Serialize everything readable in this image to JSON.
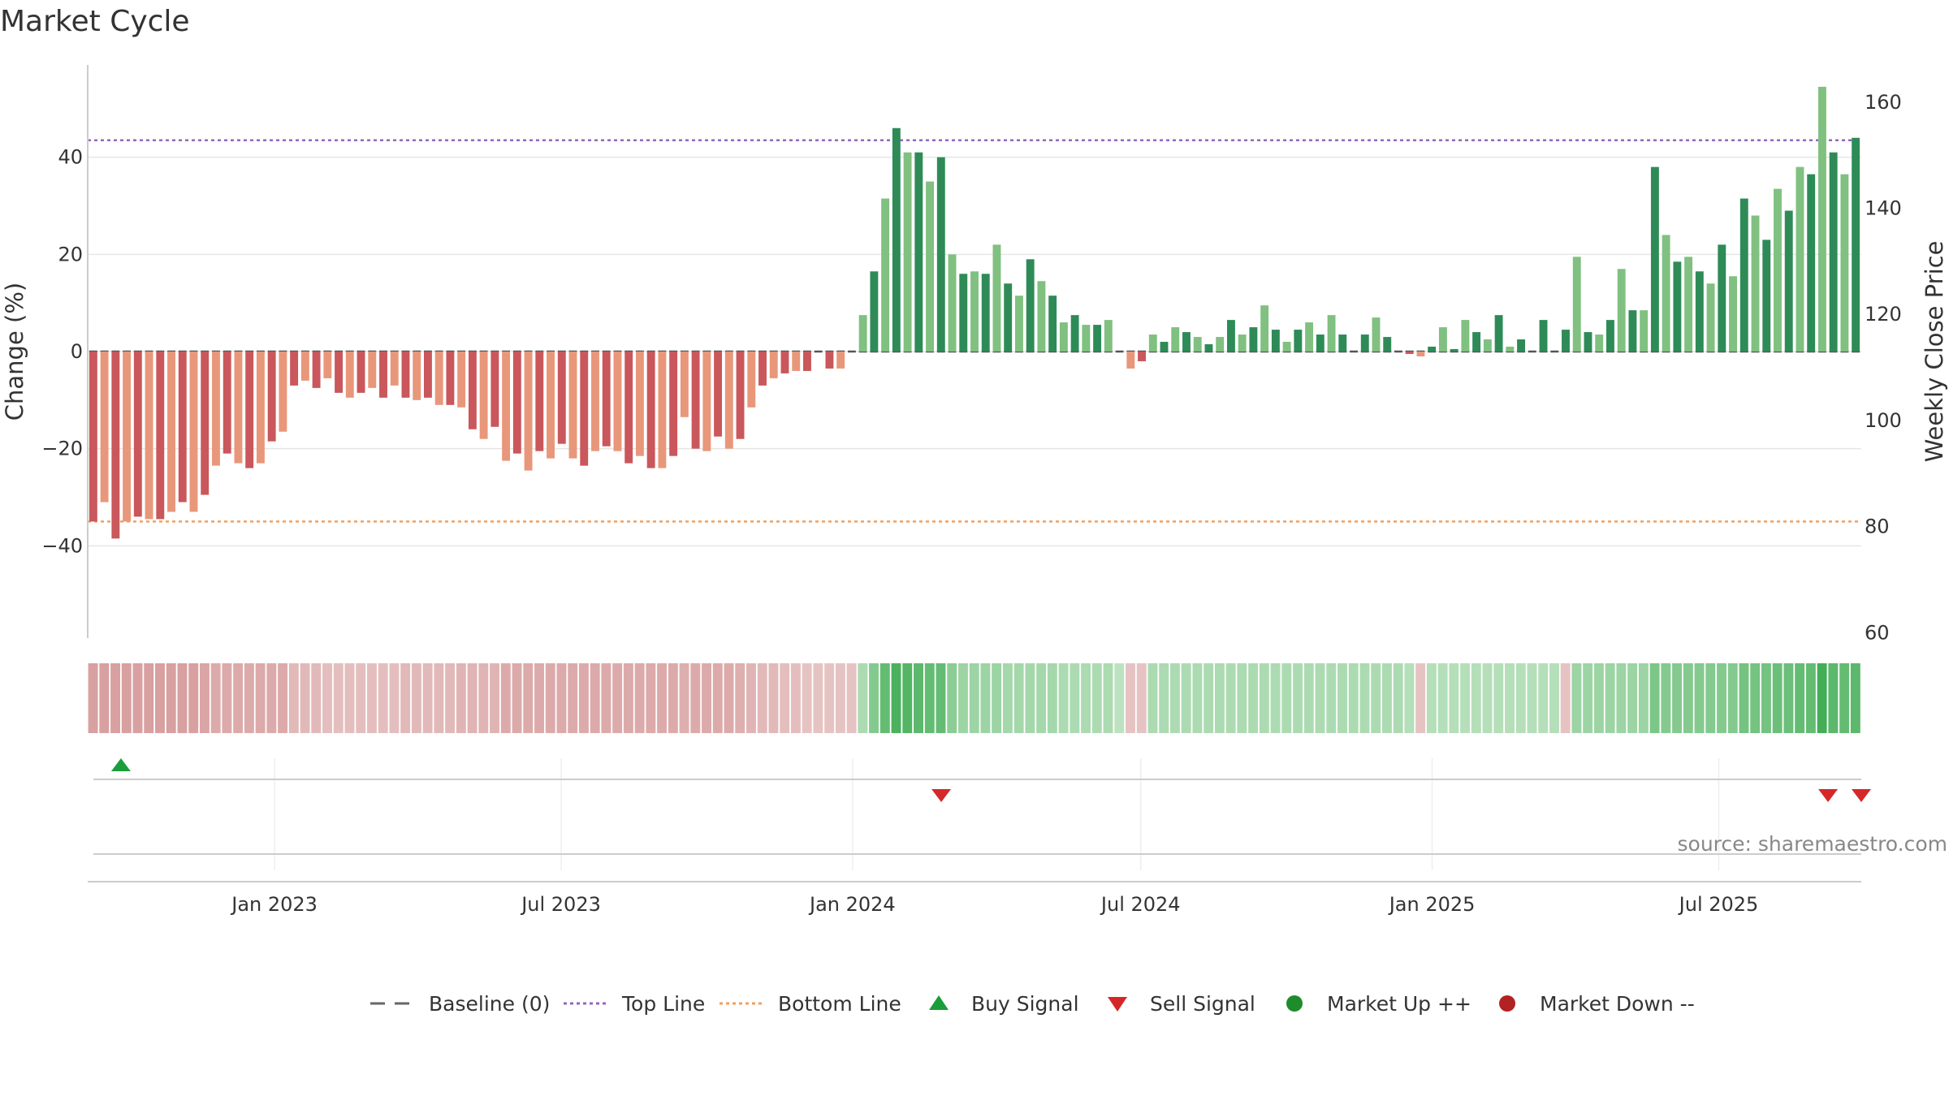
{
  "chart_data": {
    "type": "bar",
    "title": "Market Cycle",
    "ylabel_left": "Change (%)",
    "ylabel_right": "Weekly Close Price",
    "source": "source: sharemaestro.com",
    "left_axis": {
      "range": [
        -59.0,
        59.0
      ],
      "ticks": [
        40,
        20,
        0,
        -20,
        -40
      ],
      "tick_labels": [
        "40",
        "20",
        "0",
        "−20",
        "−40"
      ]
    },
    "right_axis": {
      "range": [
        59.0,
        167.0
      ],
      "ticks": [
        160,
        140,
        120,
        100,
        80,
        60
      ],
      "tick_labels": [
        "160",
        "140",
        "120",
        "100",
        "80",
        "60"
      ]
    },
    "x_axis": {
      "start_date": "2022-09-05",
      "end_date": "2025-09-29",
      "ticks": [
        "2023-01-01",
        "2023-07-01",
        "2024-01-01",
        "2024-07-01",
        "2025-01-01",
        "2025-07-01"
      ],
      "tick_labels": [
        "Jan 2023",
        "Jul 2023",
        "Jan 2024",
        "Jul 2024",
        "Jan 2025",
        "Jul 2025"
      ]
    },
    "reference_lines": {
      "baseline": 0,
      "top_line": 43.5,
      "bottom_line": -35
    },
    "grid": true,
    "legend_position": "bottom",
    "legend": [
      {
        "label": "Baseline (0)",
        "marker": "dash",
        "color": "#666666"
      },
      {
        "label": "Top Line",
        "marker": "dotted-line",
        "color": "#9467bd"
      },
      {
        "label": "Bottom Line",
        "marker": "dotted-line",
        "color": "#f0a060"
      },
      {
        "label": "Buy Signal",
        "marker": "triangle-up",
        "color": "#1a9e3c"
      },
      {
        "label": "Sell Signal",
        "marker": "triangle-down",
        "color": "#d62728"
      },
      {
        "label": "Market Up ++",
        "marker": "circle",
        "color": "#1e8c2a"
      },
      {
        "label": "Market Down --",
        "marker": "circle",
        "color": "#b22222"
      }
    ],
    "colors": {
      "neg_dark": "#c9575b",
      "neg_light": "#e8977b",
      "pos_dark": "#2e8b57",
      "pos_light": "#80c080",
      "top_line": "#9467bd",
      "bottom_line": "#f0a060",
      "buy": "#1a9e3c",
      "sell": "#d62728"
    },
    "series": [
      {
        "name": "Change (%)",
        "values": [
          -35,
          -31,
          -38.5,
          -35,
          -34,
          -34.5,
          -34.5,
          -33,
          -31,
          -33,
          -29.5,
          -23.5,
          -21,
          -23,
          -24,
          -23,
          -18.5,
          -16.5,
          -7,
          -6,
          -7.5,
          -5.5,
          -8.5,
          -9.5,
          -8.5,
          -7.5,
          -9.5,
          -7,
          -9.5,
          -10,
          -9.5,
          -11,
          -11,
          -11.5,
          -16,
          -18,
          -15.5,
          -22.5,
          -21,
          -24.5,
          -20.5,
          -22,
          -19,
          -22,
          -23.5,
          -20.5,
          -19.5,
          -20.5,
          -23,
          -21.5,
          -24,
          -24,
          -21.5,
          -13.5,
          -20,
          -20.5,
          -17.5,
          -20,
          -18,
          -11.5,
          -7,
          -5.5,
          -4.5,
          -4,
          -4,
          0,
          -3.5,
          -3.5,
          0,
          7.5,
          16.5,
          31.5,
          46,
          41,
          41,
          35,
          40,
          20,
          16,
          16.5,
          16,
          22,
          14,
          11.5,
          19,
          14.5,
          11.5,
          6,
          7.5,
          5.5,
          5.5,
          6.5,
          0,
          -3.5,
          -2,
          3.5,
          2,
          5,
          4,
          3,
          1.5,
          3,
          6.5,
          3.5,
          5,
          9.5,
          4.5,
          2,
          4.5,
          6,
          3.5,
          7.5,
          3.5,
          0,
          3.5,
          7,
          3,
          0,
          -0.5,
          -1,
          1,
          5,
          0.5,
          6.5,
          4,
          2.5,
          7.5,
          1,
          2.5,
          0,
          6.5,
          0,
          4.5,
          19.5,
          4,
          3.5,
          6.5,
          17,
          8.5,
          8.5,
          38,
          24,
          18.5,
          19.5,
          16.5,
          14,
          22,
          15.5,
          31.5,
          28,
          23,
          33.5,
          29,
          38,
          36.5,
          54.5,
          41,
          36.5,
          44
        ]
      },
      {
        "name": "Cycle strength",
        "values": [
          -0.55,
          -0.55,
          -0.55,
          -0.55,
          -0.55,
          -0.55,
          -0.55,
          -0.55,
          -0.55,
          -0.55,
          -0.5,
          -0.45,
          -0.45,
          -0.45,
          -0.45,
          -0.45,
          -0.45,
          -0.45,
          -0.3,
          -0.3,
          -0.3,
          -0.25,
          -0.25,
          -0.25,
          -0.25,
          -0.25,
          -0.25,
          -0.25,
          -0.3,
          -0.3,
          -0.3,
          -0.3,
          -0.3,
          -0.35,
          -0.35,
          -0.35,
          -0.35,
          -0.45,
          -0.45,
          -0.45,
          -0.45,
          -0.45,
          -0.45,
          -0.45,
          -0.45,
          -0.45,
          -0.45,
          -0.45,
          -0.45,
          -0.45,
          -0.45,
          -0.45,
          -0.45,
          -0.4,
          -0.45,
          -0.45,
          -0.45,
          -0.45,
          -0.4,
          -0.35,
          -0.3,
          -0.3,
          -0.25,
          -0.25,
          -0.2,
          -0.2,
          -0.2,
          -0.2,
          -0.2,
          0.3,
          0.55,
          0.75,
          0.9,
          0.85,
          0.8,
          0.75,
          0.75,
          0.5,
          0.4,
          0.4,
          0.4,
          0.4,
          0.35,
          0.35,
          0.35,
          0.35,
          0.35,
          0.3,
          0.3,
          0.3,
          0.3,
          0.3,
          0.2,
          -0.2,
          -0.2,
          0.3,
          0.3,
          0.3,
          0.3,
          0.3,
          0.3,
          0.3,
          0.3,
          0.3,
          0.3,
          0.3,
          0.3,
          0.3,
          0.3,
          0.3,
          0.3,
          0.3,
          0.3,
          0.3,
          0.3,
          0.3,
          0.3,
          0.3,
          0.25,
          -0.2,
          0.25,
          0.25,
          0.25,
          0.25,
          0.25,
          0.25,
          0.25,
          0.25,
          0.25,
          0.25,
          0.25,
          0.25,
          -0.2,
          0.4,
          0.4,
          0.4,
          0.4,
          0.4,
          0.4,
          0.4,
          0.6,
          0.55,
          0.55,
          0.55,
          0.55,
          0.55,
          0.55,
          0.55,
          0.65,
          0.65,
          0.65,
          0.7,
          0.7,
          0.75,
          0.75,
          0.95,
          0.8,
          0.75,
          0.8
        ]
      }
    ],
    "signals": [
      {
        "type": "buy",
        "date": "2022-09-26"
      },
      {
        "type": "sell",
        "date": "2024-02-26"
      },
      {
        "type": "sell",
        "date": "2025-09-08"
      },
      {
        "type": "sell",
        "date": "2025-09-29"
      }
    ]
  }
}
